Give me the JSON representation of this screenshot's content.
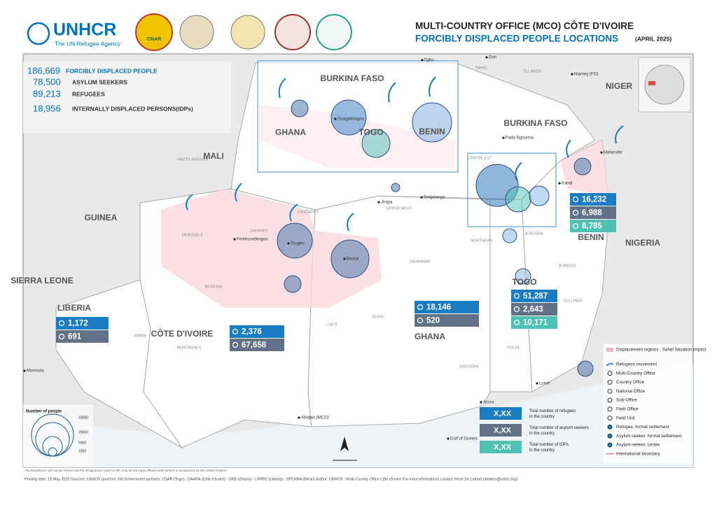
{
  "header": {
    "logo": "UNHCR",
    "logo_tagline": "The UN Refugee Agency",
    "partner_logo": "CNAR",
    "title": "MULTI-COUNTRY OFFICE (MCO) CÔTE D'IVOIRE",
    "subtitle": "FORCIBLY DISPLACED PEOPLE LOCATIONS",
    "date": "(APRIL 2025)"
  },
  "summary": [
    {
      "value": "186,669",
      "label": "FORCIBLY DISPLACED PEOPLE"
    },
    {
      "value": "78,500",
      "label": "ASYLUM SEEKERS"
    },
    {
      "value": "89,213",
      "label": "REFUGEES"
    },
    {
      "value": "18,956",
      "label": "INTERNALLY DISPLACED PERSONS(IDPs)"
    }
  ],
  "countries": [
    "MALI",
    "GUINEA",
    "SIERRA LEONE",
    "LIBERIA",
    "CÔTE D'IVOIRE",
    "GHANA",
    "TOGO",
    "BENIN",
    "NIGERIA",
    "NIGER",
    "BURKINA FASO",
    "BURKINA FASO",
    "GHANA",
    "TOGO",
    "BENIN"
  ],
  "country_figures": [
    {
      "refugees": "1,172",
      "asylum_seekers": "691"
    },
    {
      "refugees": "2,376",
      "asylum_seekers": "67,658"
    },
    {
      "refugees": "18,146",
      "asylum_seekers": "520"
    },
    {
      "refugees": "51,287",
      "asylum_seekers": "2,643",
      "idps": "10,171"
    },
    {
      "refugees": "16,232",
      "asylum_seekers": "6,988",
      "idps": "8,785"
    }
  ],
  "places": [
    "Monrovia",
    "Abidjan (MCO)",
    "Lomé",
    "Accra",
    "Ouagadougou",
    "Niamey (FO)",
    "Dori",
    "Djibo",
    "Fada Ngourma",
    "Malanville",
    "Ferkessedougou",
    "Bouna",
    "Tougbo",
    "Bolgatanga",
    "Jirapa",
    "Kandi",
    "Gulf of Guinea"
  ],
  "regions": [
    "SAVANNAH",
    "NORTHERN",
    "UPPER WEST",
    "CASCADES",
    "HAUTS-BASSINS",
    "WOROBA",
    "LACS",
    "DENGUELE",
    "SAVANES",
    "BONG",
    "NIMBA",
    "MONTAGNES",
    "VOLTA",
    "ATACORA",
    "BORGOU",
    "COLLINES",
    "EASTERN",
    "CENTRE-EST",
    "SAHEL",
    "TILLABERI"
  ],
  "size_legend": {
    "title": "Number of people",
    "values": [
      "10000",
      "20000",
      "5000",
      "1000"
    ]
  },
  "box_legend": [
    {
      "value": "X,XX",
      "label": "Total number of refugees in the country"
    },
    {
      "value": "X,XX",
      "label": "Total number of asylum seekers in the country"
    },
    {
      "value": "X,XX",
      "label": "Total number of IDPs in the country"
    }
  ],
  "legend": [
    "Displacement regions : Sahel Situation impact",
    "Refugees movement",
    "Multi-Country Office",
    "Country Office",
    "National Office",
    "Sub-Office",
    "Field Office",
    "Field Unit",
    "Refugee, formal settlement",
    "Asylum-seeker, formal settlement",
    "Asylum-seeker, centre",
    "International boundary"
  ],
  "footer": {
    "disclaimer": "The boundaries and names shown and the designations used on this map do not imply official endorsement or acceptance by the United Nations.",
    "credits": "Printing date: 15 May 2025   Sources: UNHCR (proGres V4)   Government partners: CNAR (Togo) - DAARA (Côte d'Ivoire) - GRB (Ghana) - LRRRC (Liberia) - SPCNRA (Benin)   Author: UNHCR - Multi-Country Office Côte d'Ivoire   For more informations contact: Rose De Lafond (delafon@unhcr.org)"
  }
}
